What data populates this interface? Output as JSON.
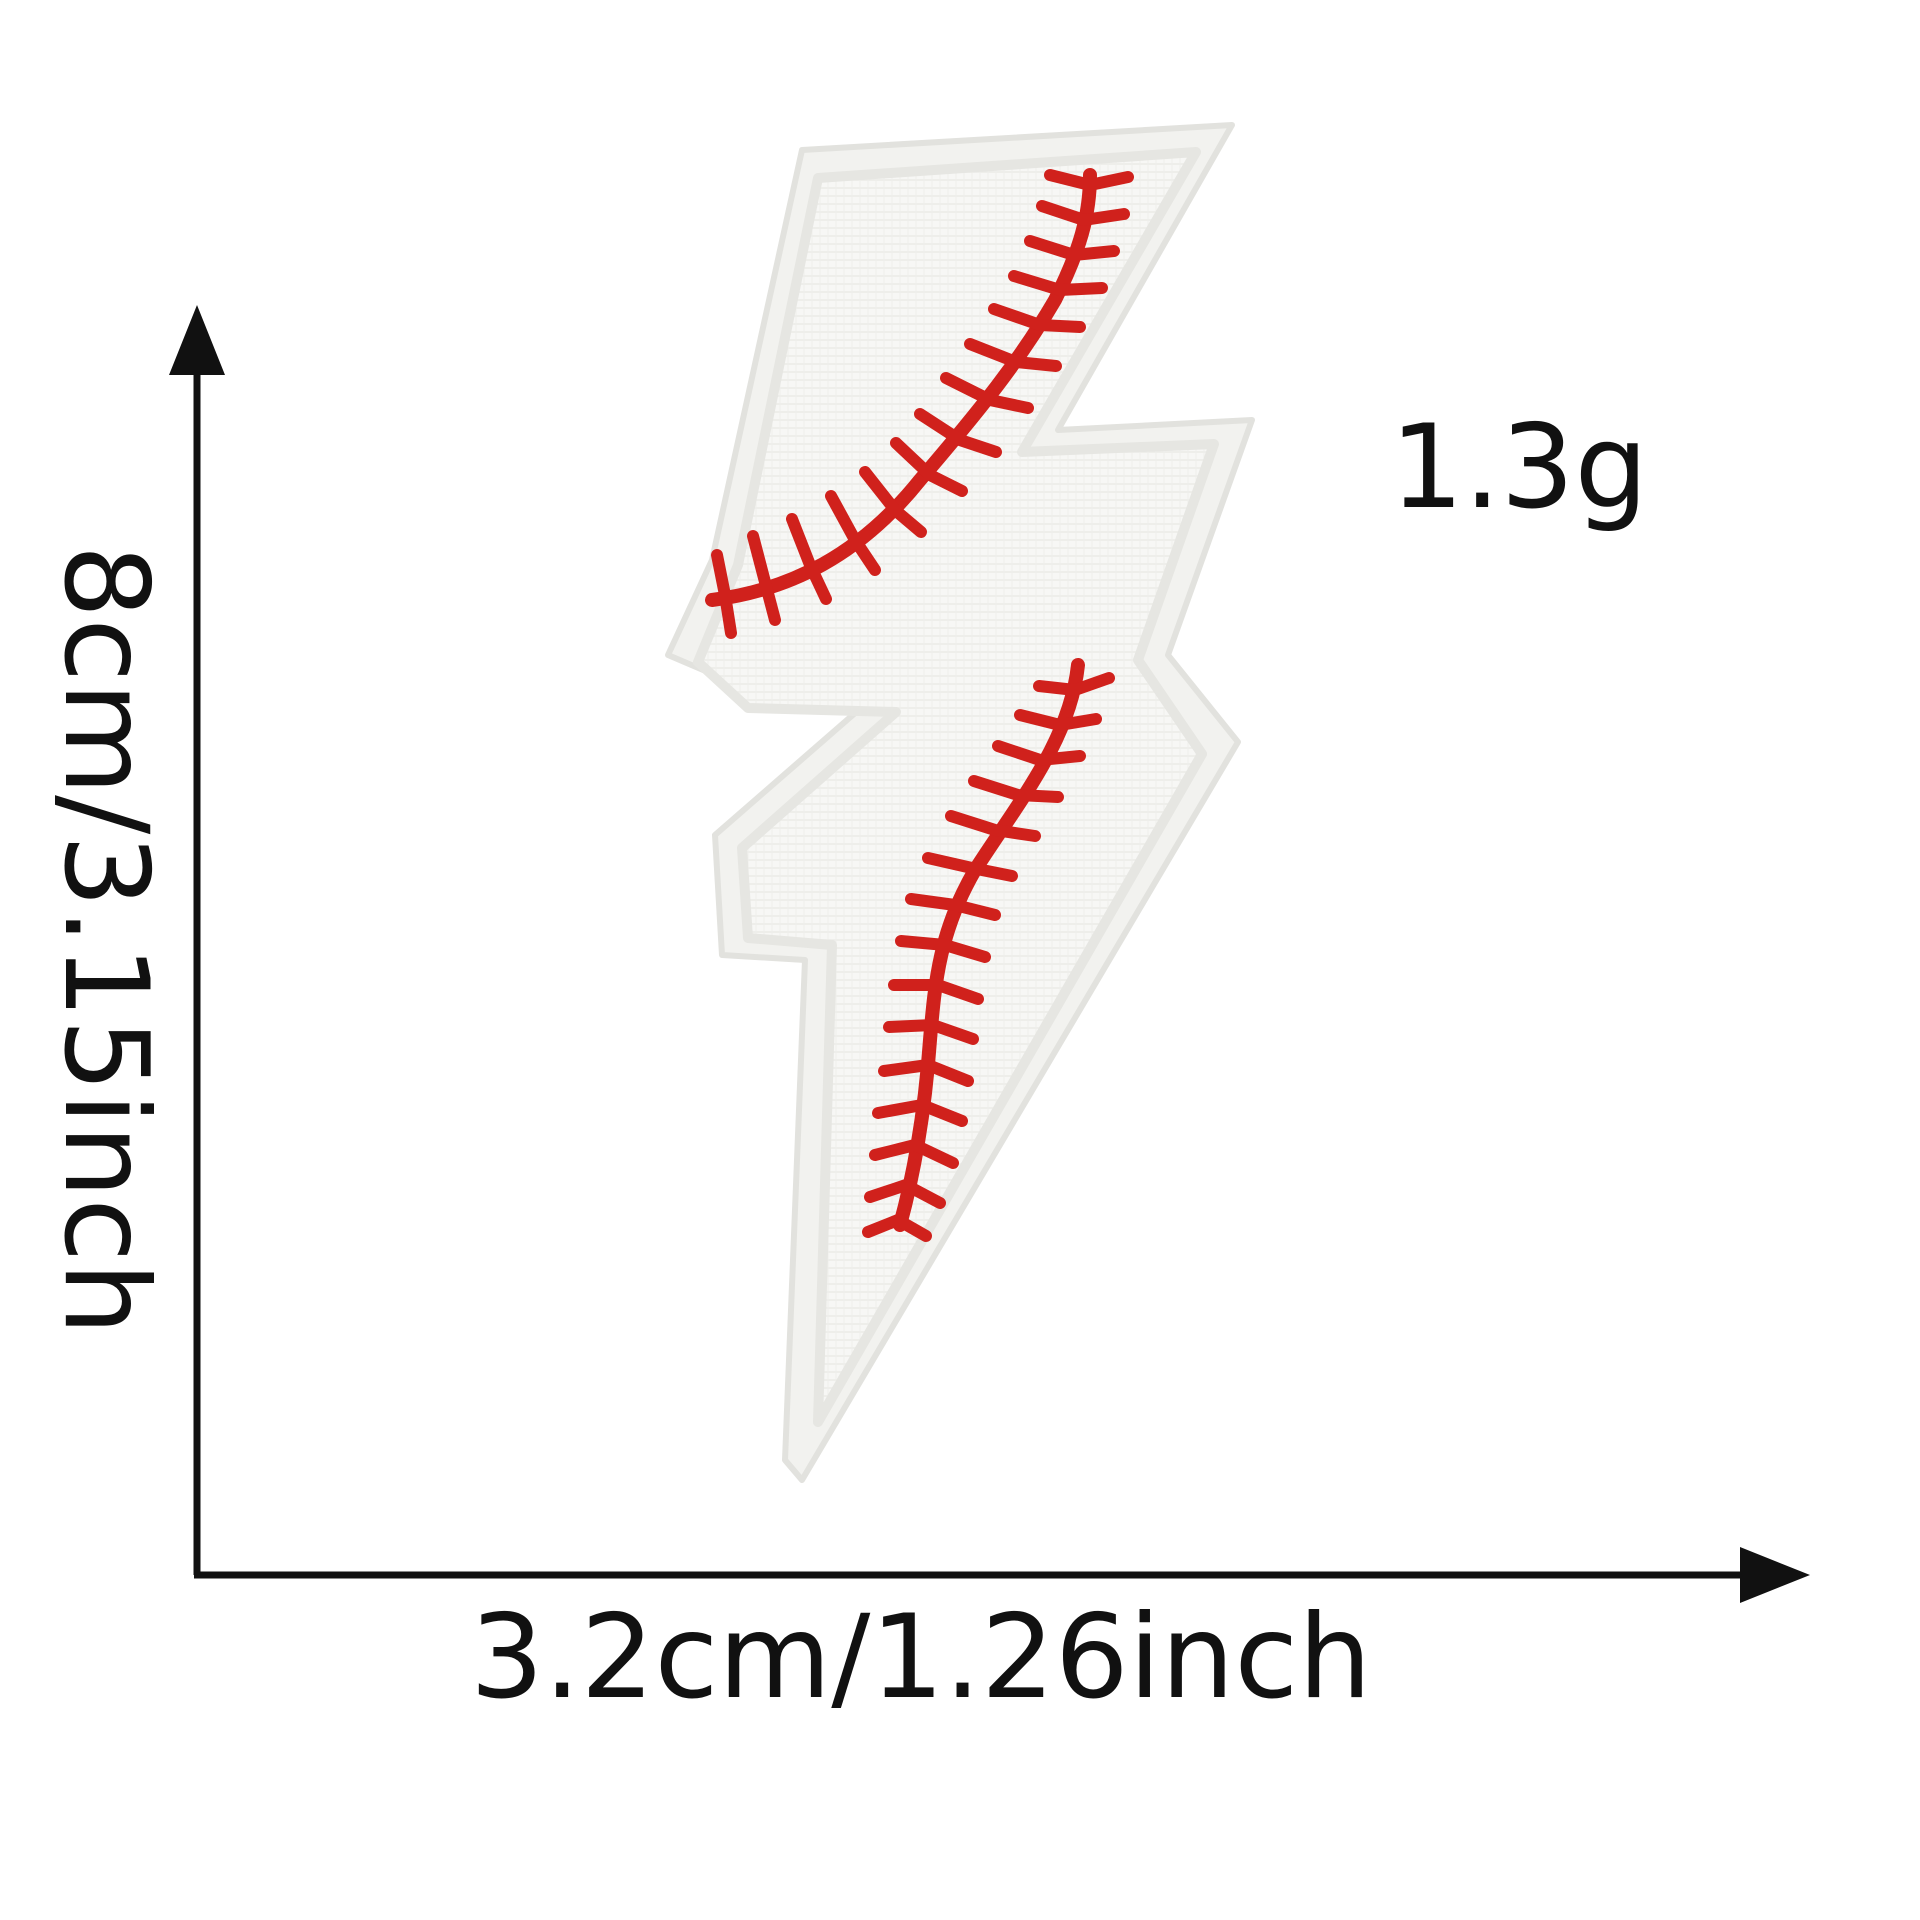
{
  "labels": {
    "weight": "1.3g",
    "height": "8cm/3.15inch",
    "width": "3.2cm/1.26inch"
  },
  "colors": {
    "background": "#ffffff",
    "patch_fabric": "#f6f6f4",
    "patch_border": "#e4e4e0",
    "stitching": "#d0211c",
    "arrow": "#111111"
  }
}
